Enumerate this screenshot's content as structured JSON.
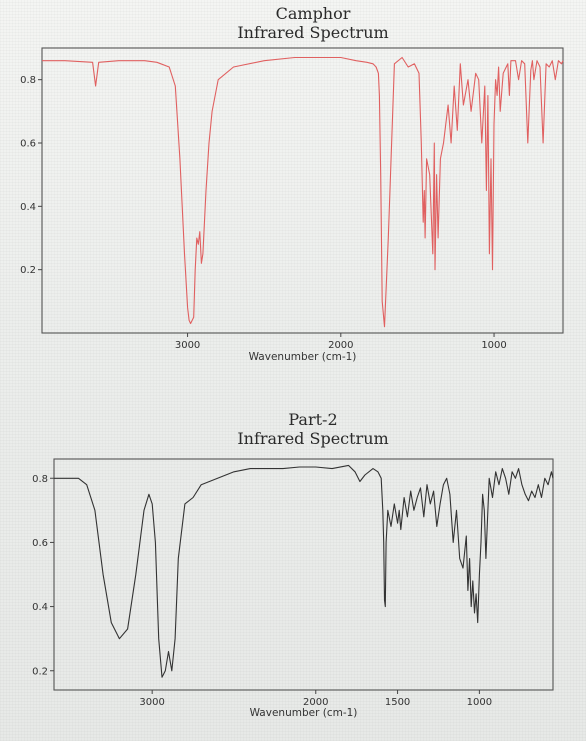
{
  "chart_data": [
    {
      "type": "line",
      "title": "Camphor",
      "subtitle": "Infrared Spectrum",
      "xlabel": "Wavenumber (cm-1)",
      "ylabel": "",
      "x_reversed": true,
      "xlim": [
        3950,
        550
      ],
      "ylim": [
        0.0,
        0.9
      ],
      "xticks": [
        3000,
        2000,
        1000
      ],
      "yticks": [
        0.2,
        0.4,
        0.6,
        0.8
      ],
      "ytick_labels": [
        "0.2",
        "0.4",
        "0.6",
        "0.8"
      ],
      "xtick_labels": [
        "3000",
        "2000",
        "1000"
      ],
      "line_color": "#e06060",
      "grid": false,
      "series": [
        {
          "x": [
            3950,
            3800,
            3620,
            3600,
            3580,
            3450,
            3280,
            3200,
            3120,
            3080,
            3050,
            3020,
            3000,
            2990,
            2980,
            2960,
            2950,
            2940,
            2930,
            2920,
            2910,
            2900,
            2880,
            2860,
            2840,
            2800,
            2700,
            2500,
            2300,
            2100,
            2000,
            1900,
            1830,
            1790,
            1770,
            1755,
            1748,
            1740,
            1730,
            1715,
            1690,
            1650,
            1600,
            1560,
            1520,
            1490,
            1475,
            1462,
            1455,
            1450,
            1440,
            1420,
            1400,
            1390,
            1385,
            1375,
            1365,
            1350,
            1330,
            1300,
            1280,
            1260,
            1240,
            1220,
            1200,
            1170,
            1150,
            1120,
            1100,
            1080,
            1060,
            1050,
            1040,
            1030,
            1020,
            1010,
            1000,
            990,
            980,
            970,
            960,
            940,
            910,
            900,
            890,
            860,
            840,
            820,
            800,
            780,
            760,
            750,
            740,
            720,
            700,
            680,
            660,
            640,
            620,
            600,
            580,
            560,
            550
          ],
          "y": [
            0.86,
            0.86,
            0.855,
            0.78,
            0.855,
            0.86,
            0.86,
            0.855,
            0.84,
            0.78,
            0.55,
            0.25,
            0.08,
            0.04,
            0.03,
            0.05,
            0.2,
            0.3,
            0.28,
            0.32,
            0.22,
            0.25,
            0.45,
            0.6,
            0.7,
            0.8,
            0.84,
            0.86,
            0.87,
            0.87,
            0.87,
            0.86,
            0.855,
            0.85,
            0.84,
            0.82,
            0.75,
            0.5,
            0.1,
            0.02,
            0.3,
            0.85,
            0.87,
            0.84,
            0.85,
            0.82,
            0.6,
            0.35,
            0.45,
            0.3,
            0.55,
            0.5,
            0.25,
            0.6,
            0.2,
            0.5,
            0.3,
            0.55,
            0.6,
            0.72,
            0.6,
            0.78,
            0.64,
            0.85,
            0.72,
            0.8,
            0.7,
            0.82,
            0.8,
            0.6,
            0.78,
            0.45,
            0.75,
            0.25,
            0.55,
            0.2,
            0.66,
            0.8,
            0.75,
            0.84,
            0.7,
            0.82,
            0.85,
            0.75,
            0.86,
            0.86,
            0.8,
            0.86,
            0.85,
            0.6,
            0.83,
            0.86,
            0.8,
            0.86,
            0.84,
            0.6,
            0.85,
            0.84,
            0.86,
            0.8,
            0.86,
            0.85,
            0.86
          ]
        }
      ]
    },
    {
      "type": "line",
      "title": "Part-2",
      "subtitle": "Infrared Spectrum",
      "xlabel": "Wavenumber (cm-1)",
      "ylabel": "",
      "x_reversed": true,
      "xlim": [
        3600,
        550
      ],
      "ylim": [
        0.14,
        0.86
      ],
      "xticks": [
        3000,
        2000,
        1500,
        1000
      ],
      "yticks": [
        0.2,
        0.4,
        0.6,
        0.8
      ],
      "ytick_labels": [
        "0.2",
        "0.4",
        "0.6",
        "0.8"
      ],
      "xtick_labels": [
        "3000",
        "2000",
        "1500",
        "1000"
      ],
      "line_color": "#333333",
      "grid": false,
      "series": [
        {
          "x": [
            3600,
            3450,
            3400,
            3350,
            3300,
            3250,
            3200,
            3150,
            3100,
            3050,
            3020,
            3000,
            2980,
            2960,
            2940,
            2920,
            2900,
            2880,
            2860,
            2840,
            2800,
            2750,
            2700,
            2600,
            2500,
            2400,
            2300,
            2200,
            2100,
            2000,
            1900,
            1800,
            1760,
            1730,
            1700,
            1650,
            1620,
            1600,
            1590,
            1585,
            1580,
            1575,
            1570,
            1560,
            1540,
            1520,
            1500,
            1490,
            1480,
            1460,
            1440,
            1420,
            1400,
            1380,
            1360,
            1340,
            1320,
            1300,
            1280,
            1260,
            1240,
            1220,
            1200,
            1180,
            1160,
            1140,
            1120,
            1100,
            1080,
            1070,
            1060,
            1050,
            1040,
            1030,
            1020,
            1010,
            1000,
            990,
            980,
            970,
            960,
            940,
            920,
            900,
            880,
            860,
            840,
            820,
            800,
            780,
            760,
            740,
            720,
            700,
            680,
            660,
            640,
            620,
            600,
            580,
            560,
            550
          ],
          "y": [
            0.8,
            0.8,
            0.78,
            0.7,
            0.5,
            0.35,
            0.3,
            0.33,
            0.5,
            0.7,
            0.75,
            0.72,
            0.6,
            0.3,
            0.18,
            0.2,
            0.26,
            0.2,
            0.3,
            0.55,
            0.72,
            0.74,
            0.78,
            0.8,
            0.82,
            0.83,
            0.83,
            0.83,
            0.835,
            0.835,
            0.83,
            0.84,
            0.82,
            0.79,
            0.81,
            0.83,
            0.82,
            0.8,
            0.7,
            0.6,
            0.42,
            0.4,
            0.6,
            0.7,
            0.65,
            0.72,
            0.66,
            0.7,
            0.64,
            0.74,
            0.68,
            0.76,
            0.7,
            0.74,
            0.77,
            0.68,
            0.78,
            0.72,
            0.76,
            0.65,
            0.72,
            0.78,
            0.8,
            0.75,
            0.6,
            0.7,
            0.55,
            0.52,
            0.62,
            0.45,
            0.55,
            0.4,
            0.48,
            0.38,
            0.44,
            0.35,
            0.5,
            0.6,
            0.75,
            0.7,
            0.55,
            0.8,
            0.74,
            0.82,
            0.78,
            0.83,
            0.8,
            0.75,
            0.82,
            0.8,
            0.83,
            0.78,
            0.75,
            0.73,
            0.76,
            0.74,
            0.78,
            0.74,
            0.8,
            0.78,
            0.82,
            0.8
          ]
        }
      ]
    }
  ]
}
